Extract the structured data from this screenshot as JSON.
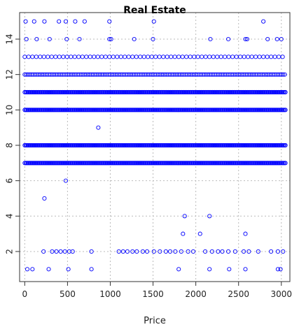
{
  "chart_data": {
    "type": "scatter",
    "title": "Real Estate",
    "xlabel": "Price",
    "ylabel": "",
    "xlim": [
      -60,
      3100
    ],
    "ylim": [
      0.3,
      15.5
    ],
    "xticks": [
      0,
      500,
      1000,
      1500,
      2000,
      2500,
      3000
    ],
    "yticks": [
      2,
      4,
      6,
      8,
      10,
      12,
      14
    ],
    "grid": true,
    "point_color": "#0000ff",
    "series": [
      {
        "dense_rows": [
          {
            "y": 7,
            "x_min": 0,
            "x_max": 3050,
            "step": 12
          },
          {
            "y": 8,
            "x_min": 0,
            "x_max": 3050,
            "step": 12
          },
          {
            "y": 10,
            "x_min": 0,
            "x_max": 3050,
            "step": 12
          },
          {
            "y": 11,
            "x_min": 0,
            "x_max": 3050,
            "step": 12
          },
          {
            "y": 12,
            "x_min": 0,
            "x_max": 3050,
            "step": 20
          },
          {
            "y": 13,
            "x_min": 0,
            "x_max": 3050,
            "step": 45
          }
        ],
        "points": [
          [
            10,
            15
          ],
          [
            110,
            15
          ],
          [
            230,
            15
          ],
          [
            400,
            15
          ],
          [
            480,
            15
          ],
          [
            590,
            15
          ],
          [
            700,
            15
          ],
          [
            990,
            15
          ],
          [
            1510,
            15
          ],
          [
            2790,
            15
          ],
          [
            20,
            14
          ],
          [
            140,
            14
          ],
          [
            290,
            14
          ],
          [
            490,
            14
          ],
          [
            640,
            14
          ],
          [
            990,
            14
          ],
          [
            1010,
            14
          ],
          [
            1280,
            14
          ],
          [
            1500,
            14
          ],
          [
            2170,
            14
          ],
          [
            2380,
            14
          ],
          [
            2580,
            14
          ],
          [
            2600,
            14
          ],
          [
            2840,
            14
          ],
          [
            2950,
            14
          ],
          [
            3000,
            14
          ],
          [
            230,
            5
          ],
          [
            480,
            6
          ],
          [
            860,
            9
          ],
          [
            1850,
            3
          ],
          [
            1870,
            4
          ],
          [
            2050,
            3
          ],
          [
            2160,
            4
          ],
          [
            2580,
            3
          ],
          [
            30,
            1
          ],
          [
            90,
            1
          ],
          [
            280,
            1
          ],
          [
            510,
            1
          ],
          [
            780,
            1
          ],
          [
            1800,
            1
          ],
          [
            2160,
            1
          ],
          [
            2390,
            1
          ],
          [
            2580,
            1
          ],
          [
            2960,
            1
          ],
          [
            2990,
            1
          ],
          [
            220,
            2
          ],
          [
            320,
            2
          ],
          [
            370,
            2
          ],
          [
            420,
            2
          ],
          [
            470,
            2
          ],
          [
            520,
            2
          ],
          [
            560,
            2
          ],
          [
            780,
            2
          ],
          [
            1100,
            2
          ],
          [
            1150,
            2
          ],
          [
            1200,
            2
          ],
          [
            1260,
            2
          ],
          [
            1310,
            2
          ],
          [
            1380,
            2
          ],
          [
            1430,
            2
          ],
          [
            1510,
            2
          ],
          [
            1580,
            2
          ],
          [
            1650,
            2
          ],
          [
            1700,
            2
          ],
          [
            1760,
            2
          ],
          [
            1830,
            2
          ],
          [
            1910,
            2
          ],
          [
            1970,
            2
          ],
          [
            2110,
            2
          ],
          [
            2190,
            2
          ],
          [
            2260,
            2
          ],
          [
            2310,
            2
          ],
          [
            2380,
            2
          ],
          [
            2460,
            2
          ],
          [
            2560,
            2
          ],
          [
            2620,
            2
          ],
          [
            2730,
            2
          ],
          [
            2880,
            2
          ],
          [
            2960,
            2
          ],
          [
            3020,
            2
          ]
        ]
      }
    ]
  }
}
